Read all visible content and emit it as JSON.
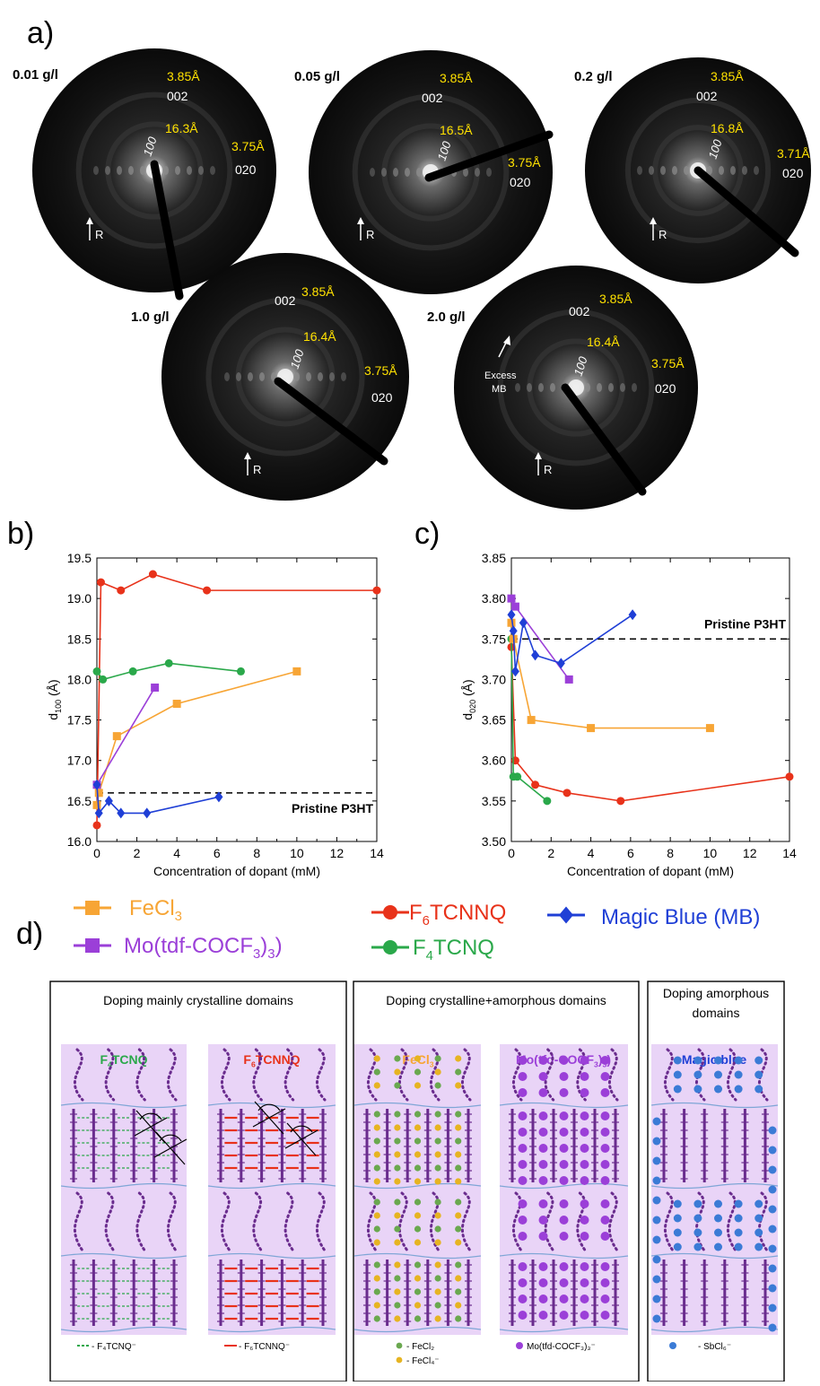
{
  "panel_labels": {
    "a": "a)",
    "b": "b)",
    "c": "c)",
    "d": "d)"
  },
  "colors": {
    "FeCl3": "#f7a535",
    "F6TCNNQ": "#e8321a",
    "F4TCNQ": "#2aa84a",
    "MagicBlue": "#1f3fd6",
    "MoTfd": "#9b3fd8",
    "chain": "#6a2c8e",
    "domain_bg": "#e9d4f7",
    "boundary": "#7fa6d6",
    "yellow_text": "#ffe100"
  },
  "saed": [
    {
      "concentration": "0.01 g/l",
      "d002": "3.85Å",
      "label002": "002",
      "d100": "16.3Å",
      "label100": "100",
      "d020": "3.75Å",
      "label020": "020",
      "arrow": "R"
    },
    {
      "concentration": "0.05 g/l",
      "d002": "3.85Å",
      "label002": "002",
      "d100": "16.5Å",
      "label100": "100",
      "d020": "3.75Å",
      "label020": "020",
      "arrow": "R"
    },
    {
      "concentration": "0.2 g/l",
      "d002": "3.85Å",
      "label002": "002",
      "d100": "16.8Å",
      "label100": "100",
      "d020": "3.71Å",
      "label020": "020",
      "arrow": "R"
    },
    {
      "concentration": "1.0 g/l",
      "d002": "3.85Å",
      "label002": "002",
      "d100": "16.4Å",
      "label100": "100",
      "d020": "3.75Å",
      "label020": "020",
      "arrow": "R"
    },
    {
      "concentration": "2.0 g/l",
      "d002": "3.85Å",
      "label002": "002",
      "d100": "16.4Å",
      "label100": "100",
      "d020": "3.75Å",
      "label020": "020",
      "arrow": "R",
      "annotation_1": "Excess",
      "annotation_2": "MB"
    }
  ],
  "chart_data": [
    {
      "type": "line",
      "xlabel": "Concentration of dopant (mM)",
      "ylabel": "d",
      "ylabel_sub": "100",
      "ylabel_unit": "(Å)",
      "xlim": [
        0,
        14
      ],
      "ylim": [
        16.0,
        19.5
      ],
      "xticks": [
        "0",
        "2",
        "4",
        "6",
        "8",
        "10",
        "12",
        "14"
      ],
      "yticks": [
        "16.0",
        "16.5",
        "17.0",
        "17.5",
        "18.0",
        "18.5",
        "19.0",
        "19.5"
      ],
      "reference": {
        "value": 16.6,
        "label": "Pristine   P3HT"
      },
      "series": [
        {
          "key": "F6TCNNQ",
          "marker": "circle",
          "x": [
            0,
            0.2,
            1.2,
            2.8,
            5.5,
            14
          ],
          "y": [
            16.2,
            19.2,
            19.1,
            19.3,
            19.1,
            19.1
          ]
        },
        {
          "key": "F4TCNQ",
          "marker": "circle",
          "x": [
            0,
            0.3,
            1.8,
            3.6,
            7.2
          ],
          "y": [
            18.1,
            18.0,
            18.1,
            18.2,
            18.1
          ]
        },
        {
          "key": "FeCl3",
          "marker": "square",
          "x": [
            0,
            0.1,
            1,
            4,
            10
          ],
          "y": [
            16.45,
            16.6,
            17.3,
            17.7,
            18.1
          ]
        },
        {
          "key": "MoTfd",
          "marker": "square",
          "x": [
            0,
            2.9
          ],
          "y": [
            16.7,
            17.9
          ]
        },
        {
          "key": "MagicBlue",
          "marker": "diamond",
          "x": [
            0,
            0.1,
            0.6,
            1.2,
            2.5,
            6.1
          ],
          "y": [
            16.7,
            16.35,
            16.5,
            16.35,
            16.35,
            16.55
          ]
        }
      ]
    },
    {
      "type": "line",
      "xlabel": "Concentration of dopant (mM)",
      "ylabel": "d",
      "ylabel_sub": "020",
      "ylabel_unit": "(Å)",
      "xlim": [
        0,
        14
      ],
      "ylim": [
        3.5,
        3.85
      ],
      "xticks": [
        "0",
        "2",
        "4",
        "6",
        "8",
        "10",
        "12",
        "14"
      ],
      "yticks": [
        "3.50",
        "3.55",
        "3.60",
        "3.65",
        "3.70",
        "3.75",
        "3.80",
        "3.85"
      ],
      "reference": {
        "value": 3.75,
        "label": "Pristine   P3HT"
      },
      "series": [
        {
          "key": "F6TCNNQ",
          "marker": "circle",
          "x": [
            0,
            0.2,
            1.2,
            2.8,
            5.5,
            14
          ],
          "y": [
            3.74,
            3.6,
            3.57,
            3.56,
            3.55,
            3.58
          ]
        },
        {
          "key": "F4TCNQ",
          "marker": "circle",
          "x": [
            0,
            0.1,
            0.3,
            1.8
          ],
          "y": [
            3.75,
            3.58,
            3.58,
            3.55
          ]
        },
        {
          "key": "FeCl3",
          "marker": "square",
          "x": [
            0,
            0.1,
            1,
            4,
            10
          ],
          "y": [
            3.77,
            3.75,
            3.65,
            3.64,
            3.64
          ]
        },
        {
          "key": "MoTfd",
          "marker": "square",
          "x": [
            0,
            0.2,
            2.9
          ],
          "y": [
            3.8,
            3.79,
            3.7
          ]
        },
        {
          "key": "MagicBlue",
          "marker": "diamond",
          "x": [
            0,
            0.1,
            0.2,
            0.6,
            1.2,
            2.5,
            6.1
          ],
          "y": [
            3.78,
            3.76,
            3.71,
            3.77,
            3.73,
            3.72,
            3.78
          ]
        }
      ]
    }
  ],
  "legend": [
    {
      "key": "FeCl3",
      "marker": "square",
      "name": "FeCl",
      "sub": "3",
      "tail": ""
    },
    {
      "key": "MoTfd",
      "marker": "square",
      "name": "Mo(tdf-COCF",
      "sub": "3",
      "tail": ")",
      "sub2": "3",
      "tail2": ")"
    },
    {
      "key": "F6TCNNQ",
      "marker": "circle",
      "name": "F",
      "sub": "6",
      "tail": "TCNNQ"
    },
    {
      "key": "F4TCNQ",
      "marker": "circle",
      "name": "F",
      "sub": "4",
      "tail": "TCNQ"
    },
    {
      "key": "MagicBlue",
      "marker": "diamond",
      "name": "Magic Blue (MB)",
      "sub": "",
      "tail": ""
    }
  ],
  "schematic": {
    "boxes": [
      {
        "title": "Doping mainly crystalline domains"
      },
      {
        "title": "Doping crystalline+amorphous domains"
      },
      {
        "title_1": "Doping amorphous",
        "title_2": "domains"
      }
    ],
    "columns": [
      {
        "label": "F",
        "sub": "4",
        "tail": "TCNQ",
        "color_key": "F4TCNQ",
        "caption": "- F₄TCNQ⁻"
      },
      {
        "label": "F",
        "sub": "6",
        "tail": "TCNNQ",
        "color_key": "F6TCNNQ",
        "caption": "- F₆TCNNQ⁻"
      },
      {
        "label": "FeCl",
        "sub": "3",
        "tail": "",
        "color_key": "FeCl3",
        "caption": "- FeCl₂",
        "caption2": "- FeCl₄⁻"
      },
      {
        "label": "Mo(tfd-COCF",
        "sub": "3",
        "tail": ")",
        "sub2": "3",
        "color_key": "MoTfd",
        "caption": "Mo(tfd-COCF₃)₃⁻"
      },
      {
        "label": "Magic blue",
        "sub": "",
        "tail": "",
        "color_key": "MagicBlue",
        "caption": "- SbCl₆⁻"
      }
    ]
  }
}
